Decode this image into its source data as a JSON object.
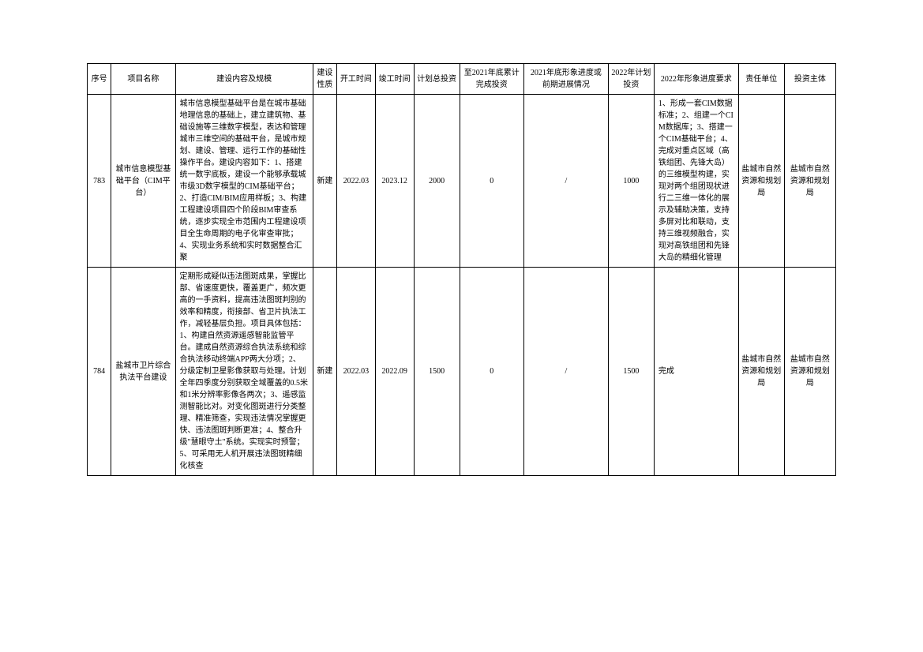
{
  "headers": {
    "seq": "序号",
    "name": "项目名称",
    "content": "建设内容及规模",
    "nature": "建设性质",
    "start": "开工时间",
    "end": "竣工时间",
    "totalInv": "计划总投资",
    "completed": "至2021年底累计完成投资",
    "progress": "2021年底形象进度或前期进展情况",
    "planInv": "2022年计划投资",
    "requirement": "2022年形象进度要求",
    "resp": "责任单位",
    "investor": "投资主体"
  },
  "rows": [
    {
      "seq": "783",
      "name": "城市信息模型基础平台（CIM平台）",
      "content": "城市信息模型基础平台是在城市基础地理信息的基础上，建立建筑物、基础设施等三维数字模型，表达和管理城市三维空间的基础平台，是城市规划、建设、管理、运行工作的基础性操作平台。建设内容如下：1、搭建统一数字底板，建设一个能够承载城市级3D数字模型的CIM基础平台；2、打造CIM/BIM应用样板；3、构建工程建设项目四个阶段BIM审查系统，逐步实现全市范围内工程建设项目全生命周期的电子化审查审批；4、实现业务系统和实时数据整合汇聚",
      "nature": "新建",
      "start": "2022.03",
      "end": "2023.12",
      "totalInv": "2000",
      "completed": "0",
      "progress": "/",
      "planInv": "1000",
      "requirement": "1、形成一套CIM数据标准；2、组建一个CIM数据库；3、搭建一个CIM基础平台；4、完成对重点区域（高铁组团、先锋大岛）的三维模型构建，实现对两个组团现状进行二三维一体化的展示及辅助决策，支持多屏对比和联动，支持三维视频融合，实现对高铁组团和先锋大岛的精细化管理",
      "resp": "盐城市自然资源和规划局",
      "investor": "盐城市自然资源和规划局"
    },
    {
      "seq": "784",
      "name": "盐城市卫片综合执法平台建设",
      "content": "定期形成疑似违法图斑成果，掌握比部、省速度更快，覆盖更广，频次更高的一手资料，提高违法图斑判别的效率和精度，衔接部、省卫片执法工作，减轻基层负担。项目具体包括：1、构建自然资源遥感智能监管平台。建成自然资源综合执法系统和综合执法移动终端APP两大分项；2、分级定制卫星影像获取与处理。计划全年四季度分别获取全域覆盖的0.5米和1米分辨率影像各两次；3、遥感监测智能比对。对变化图斑进行分类整理、精准筛查，实现违法情况掌握更快、违法图斑判断更准；4、整合升级\"慧眼守土\"系统。实现实时预警；5、可采用无人机开展违法图斑精细化核查",
      "nature": "新建",
      "start": "2022.03",
      "end": "2022.09",
      "totalInv": "1500",
      "completed": "0",
      "progress": "/",
      "planInv": "1500",
      "requirement": "完成",
      "resp": "盐城市自然资源和规划局",
      "investor": "盐城市自然资源和规划局"
    }
  ]
}
